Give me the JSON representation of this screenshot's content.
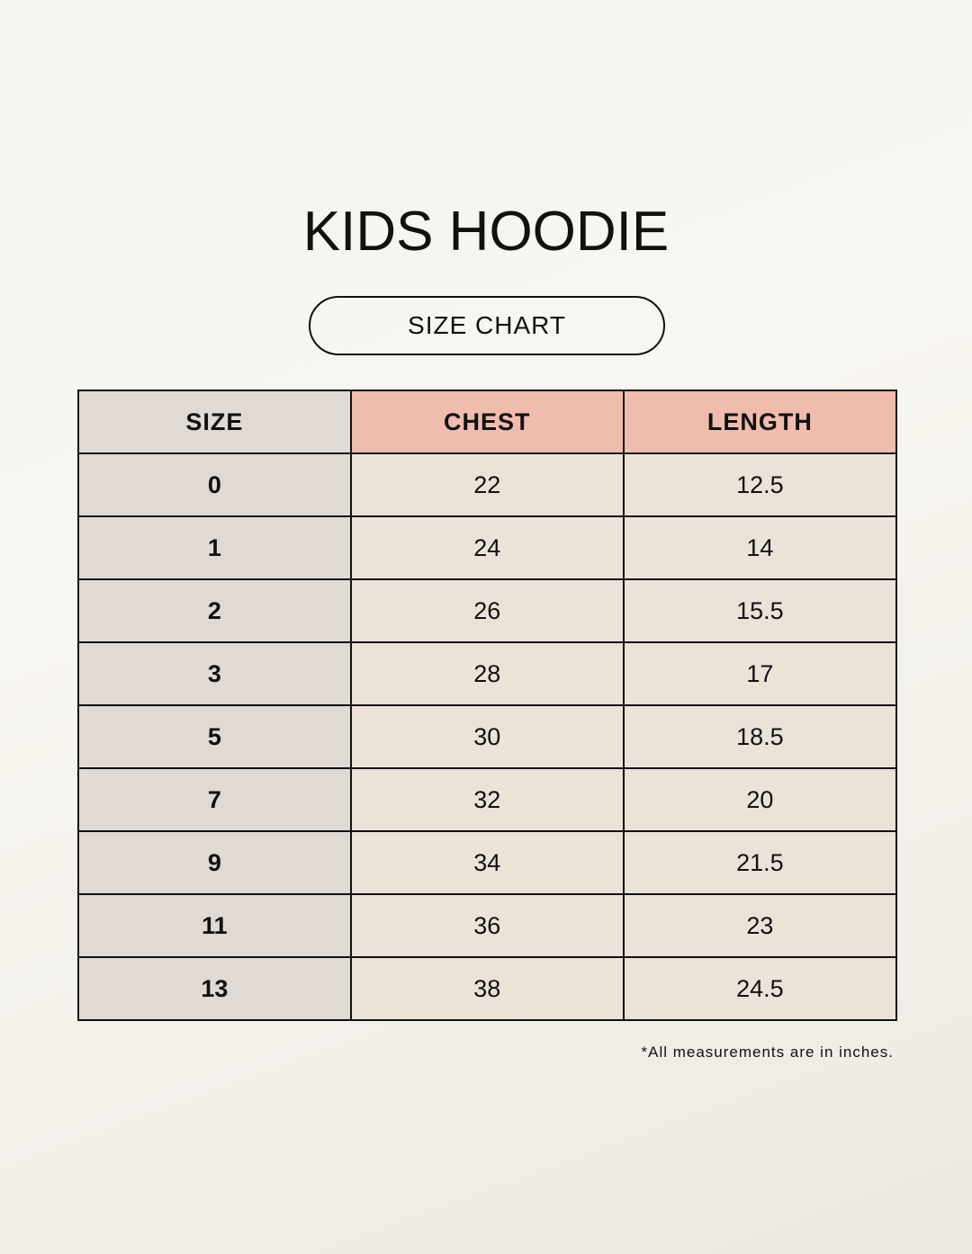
{
  "title": "KIDS HOODIE",
  "subtitle": "SIZE CHART",
  "colors": {
    "header_accent": "#efbcae",
    "size_column": "#e0d9d4",
    "value_cells": "#ebe2d8"
  },
  "table": {
    "headers": [
      "SIZE",
      "CHEST",
      "LENGTH"
    ],
    "rows": [
      [
        "0",
        "22",
        "12.5"
      ],
      [
        "1",
        "24",
        "14"
      ],
      [
        "2",
        "26",
        "15.5"
      ],
      [
        "3",
        "28",
        "17"
      ],
      [
        "5",
        "30",
        "18.5"
      ],
      [
        "7",
        "32",
        "20"
      ],
      [
        "9",
        "34",
        "21.5"
      ],
      [
        "11",
        "36",
        "23"
      ],
      [
        "13",
        "38",
        "24.5"
      ]
    ]
  },
  "footnote": "*All measurements are in inches."
}
